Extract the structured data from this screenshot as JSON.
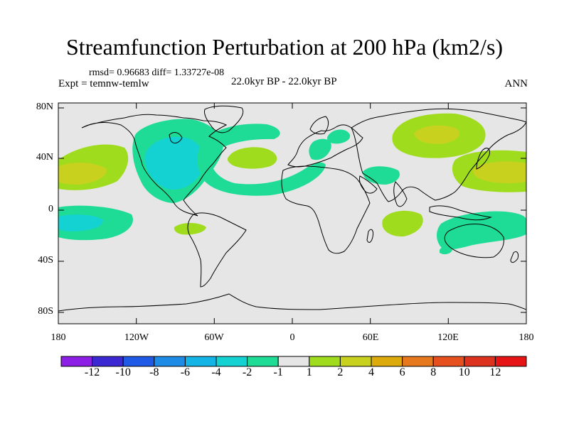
{
  "title": "Streamfunction Perturbation at 200 hPa (km2/s)",
  "stats": "rmsd= 0.96683 diff= 1.33727e-08",
  "experiment": "Expt = temnw-temlw",
  "period": "22.0kyr BP - 22.0kyr BP",
  "season": "ANN",
  "lat_labels": [
    "80N",
    "40N",
    "0",
    "40S",
    "80S"
  ],
  "lon_labels": [
    "180",
    "120W",
    "60W",
    "0",
    "60E",
    "120E",
    "180"
  ],
  "colorbar": {
    "labels": [
      "-12",
      "-10",
      "-8",
      "-6",
      "-4",
      "-2",
      "-1",
      "1",
      "2",
      "4",
      "6",
      "8",
      "10",
      "12"
    ],
    "colors": [
      "#8c1ee6",
      "#3c28d2",
      "#1e5ae6",
      "#1e8ce6",
      "#14b4e6",
      "#14d2d2",
      "#1edc96",
      "#e6e6e6",
      "#a0dc1e",
      "#c8d21e",
      "#dcaa0a",
      "#e6781e",
      "#e6501e",
      "#dc321e",
      "#e61414"
    ]
  },
  "colors": {
    "land_bg": "#e6e6e6",
    "level_m2": "#14d2d2",
    "level_m1": "#1edc96",
    "level_p1": "#a0dc1e",
    "level_p2": "#c8d21e"
  }
}
